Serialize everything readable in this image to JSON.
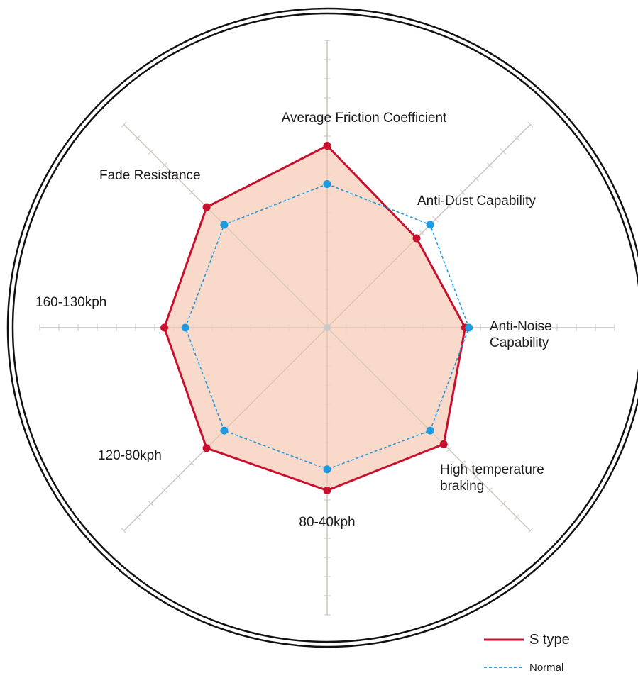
{
  "chart_data": {
    "type": "radar",
    "axes": [
      {
        "label_lines": [
          "Average Friction Coefficient"
        ]
      },
      {
        "label_lines": [
          "Anti-Dust Capability"
        ]
      },
      {
        "label_lines": [
          "Anti-Noise",
          "Capability"
        ]
      },
      {
        "label_lines": [
          "High temperature",
          "braking"
        ]
      },
      {
        "label_lines": [
          "80-40kph"
        ]
      },
      {
        "label_lines": [
          "120-80kph"
        ]
      },
      {
        "label_lines": [
          "160-130kph"
        ]
      },
      {
        "label_lines": [
          "Fade Resistance"
        ]
      }
    ],
    "scale": {
      "min": 0,
      "max": 15,
      "ticks": 15
    },
    "series": [
      {
        "name": "S type",
        "color": "#c8102e",
        "fill": "#f8d2c0",
        "style": "solid",
        "values": [
          9.5,
          6.6,
          7.2,
          8.6,
          8.5,
          8.9,
          8.5,
          8.9
        ]
      },
      {
        "name": "Normal",
        "color": "#1e9be0",
        "style": "dashed",
        "values": [
          7.5,
          7.6,
          7.4,
          7.6,
          7.4,
          7.6,
          7.4,
          7.6
        ]
      }
    ],
    "grid": true,
    "legend": {
      "position": "bottom-right"
    }
  }
}
